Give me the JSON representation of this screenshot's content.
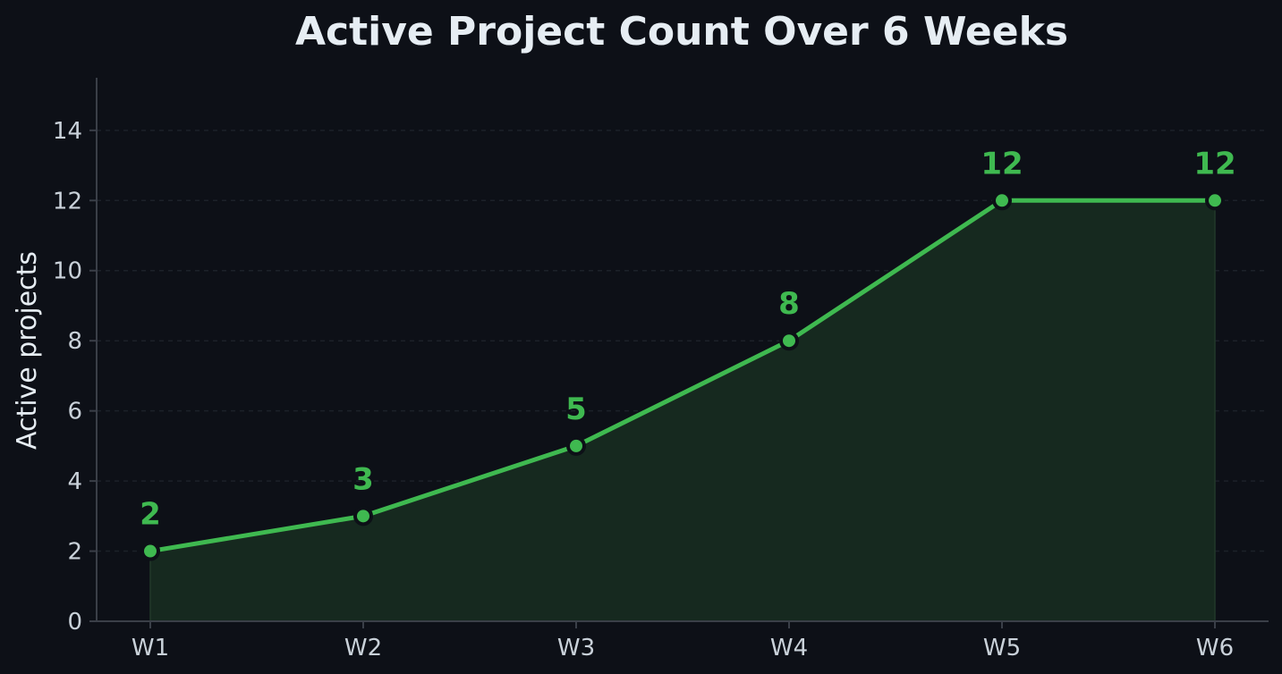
{
  "chart_data": {
    "type": "area",
    "title": "Active Project Count Over 6 Weeks",
    "xlabel": "",
    "ylabel": "Active projects",
    "categories": [
      "W1",
      "W2",
      "W3",
      "W4",
      "W5",
      "W6"
    ],
    "values": [
      2,
      3,
      5,
      8,
      12,
      12
    ],
    "data_labels": [
      "2",
      "3",
      "5",
      "8",
      "12",
      "12"
    ],
    "ylim": [
      0,
      15.5
    ],
    "yticks": [
      0,
      2,
      4,
      6,
      8,
      10,
      12,
      14
    ],
    "ytick_labels": [
      "0",
      "2",
      "4",
      "6",
      "8",
      "10",
      "12",
      "14"
    ],
    "grid": true,
    "legend": "none",
    "colors": {
      "background": "#0d1017",
      "line": "#3fb950",
      "fill": "#16291f",
      "axis": "#3a3f48",
      "grid": "#1c2129",
      "text": "#c9d1d9",
      "title": "#e6edf3",
      "marker_edge": "#0d1017"
    }
  }
}
